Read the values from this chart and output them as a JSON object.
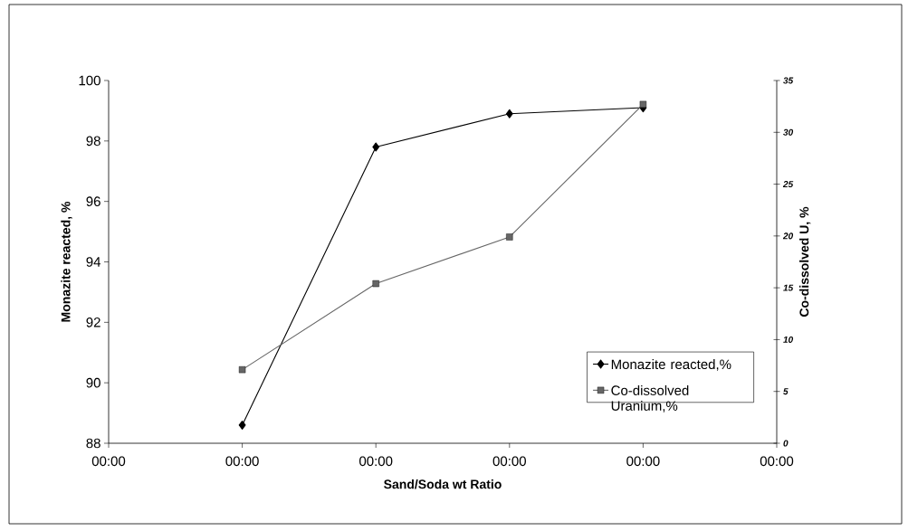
{
  "chart_data": {
    "type": "line",
    "xlabel": "Sand/Soda wt Ratio",
    "ylabel": "Monazite reacted, %",
    "y2label": "Co-dissolved U, %",
    "x": [
      1,
      2,
      3,
      4
    ],
    "xlim": [
      0,
      5
    ],
    "xticks": [
      {
        "value": 0,
        "label": "00:00"
      },
      {
        "value": 1,
        "label": "00:00"
      },
      {
        "value": 2,
        "label": "00:00"
      },
      {
        "value": 3,
        "label": "00:00"
      },
      {
        "value": 4,
        "label": "00:00"
      },
      {
        "value": 5,
        "label": "00:00"
      }
    ],
    "ylim": [
      88,
      100
    ],
    "yticks": [
      88,
      90,
      92,
      94,
      96,
      98,
      100
    ],
    "y2lim": [
      0,
      35
    ],
    "y2ticks": [
      0,
      5,
      10,
      15,
      20,
      25,
      30,
      35
    ],
    "legend": "bottom right",
    "grid": false,
    "line_style": "solid",
    "series": [
      {
        "name": "Monazite reacted,%",
        "color": "#000000",
        "marker": "diamond",
        "values": [
          88.6,
          97.8,
          98.9,
          99.1
        ]
      },
      {
        "name": "Co-dissolved Uranium,%",
        "color": "#666666",
        "marker": "square",
        "axis": "y2",
        "values": [
          7.1,
          15.4,
          19.9,
          32.7
        ]
      }
    ]
  }
}
